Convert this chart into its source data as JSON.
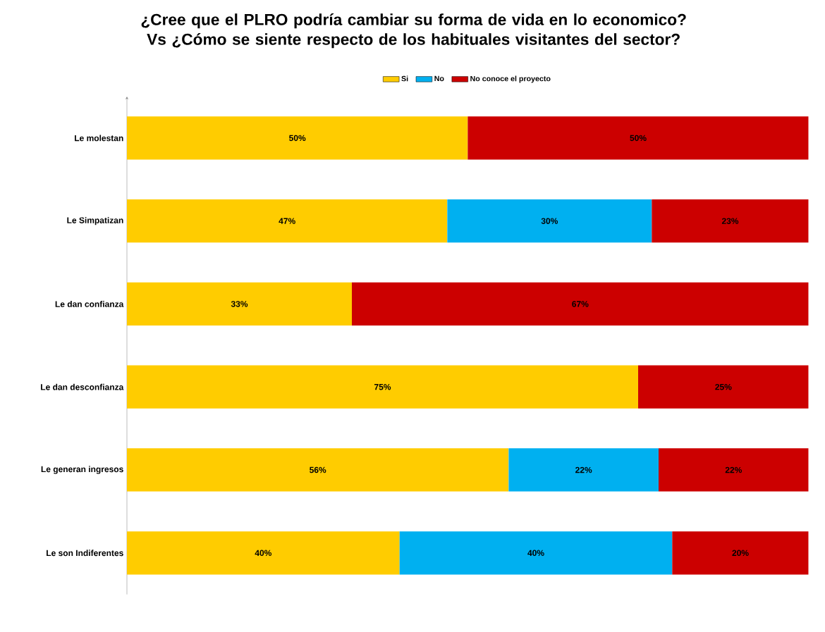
{
  "chart_data": {
    "type": "bar",
    "orientation": "horizontal",
    "stacked": true,
    "title": "¿Cree que el PLRO podría cambiar su forma de vida en lo economico? Vs ¿Cómo se siente respecto de los habituales visitantes del sector?",
    "categories": [
      "Le molestan",
      "Le Simpatizan",
      "Le dan confianza",
      "Le dan desconfianza",
      "Le generan ingresos",
      "Le son Indiferentes"
    ],
    "series": [
      {
        "name": "Si",
        "color": "#ffcc00",
        "values": [
          50,
          47,
          33,
          75,
          56,
          40
        ],
        "value_labels": [
          "50%",
          "47%",
          "33%",
          "75%",
          "56%",
          "40%"
        ]
      },
      {
        "name": "No",
        "color": "#00b0f0",
        "values": [
          null,
          30,
          null,
          null,
          22,
          40
        ],
        "value_labels": [
          null,
          "30%",
          null,
          null,
          "22%",
          "40%"
        ]
      },
      {
        "name": "No conoce el proyecto",
        "color": "#cc0000",
        "values": [
          50,
          23,
          67,
          25,
          22,
          20
        ],
        "value_labels": [
          "50%",
          "23%",
          "67%",
          "25%",
          "22%",
          "20%"
        ]
      }
    ],
    "xlim": [
      0,
      100
    ],
    "tick_labels": "y",
    "legend": "top",
    "grid": false
  }
}
